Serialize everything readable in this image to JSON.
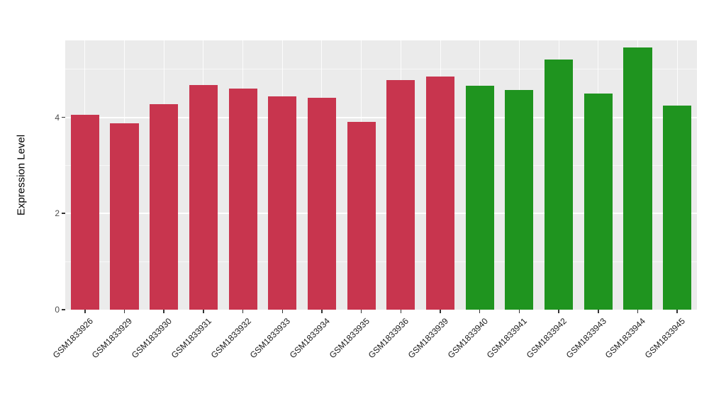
{
  "chart_data": {
    "type": "bar",
    "title": "",
    "xlabel": "",
    "ylabel": "Expression Level",
    "ylim": [
      0,
      5.6
    ],
    "yticks": [
      0,
      2,
      4
    ],
    "minor_yticks": [
      1,
      3,
      5
    ],
    "grid": "on",
    "legend": "none",
    "categories": [
      "GSM1833926",
      "GSM1833929",
      "GSM1833930",
      "GSM1833931",
      "GSM1833932",
      "GSM1833933",
      "GSM1833934",
      "GSM1833935",
      "GSM1833936",
      "GSM1833939",
      "GSM1833940",
      "GSM1833941",
      "GSM1833942",
      "GSM1833943",
      "GSM1833944",
      "GSM1833945"
    ],
    "values": [
      4.05,
      3.87,
      4.27,
      4.67,
      4.6,
      4.44,
      4.4,
      3.9,
      4.78,
      4.85,
      4.65,
      4.57,
      5.2,
      4.5,
      5.45,
      4.25
    ],
    "bar_groups": [
      "red",
      "red",
      "red",
      "red",
      "red",
      "red",
      "red",
      "red",
      "red",
      "red",
      "green",
      "green",
      "green",
      "green",
      "green",
      "green"
    ],
    "colors": {
      "red": "#C8354E",
      "green": "#1F941F",
      "panel_background": "#EBEBEB",
      "grid": "#FFFFFF",
      "tick_text": "#4D4D4D"
    }
  }
}
